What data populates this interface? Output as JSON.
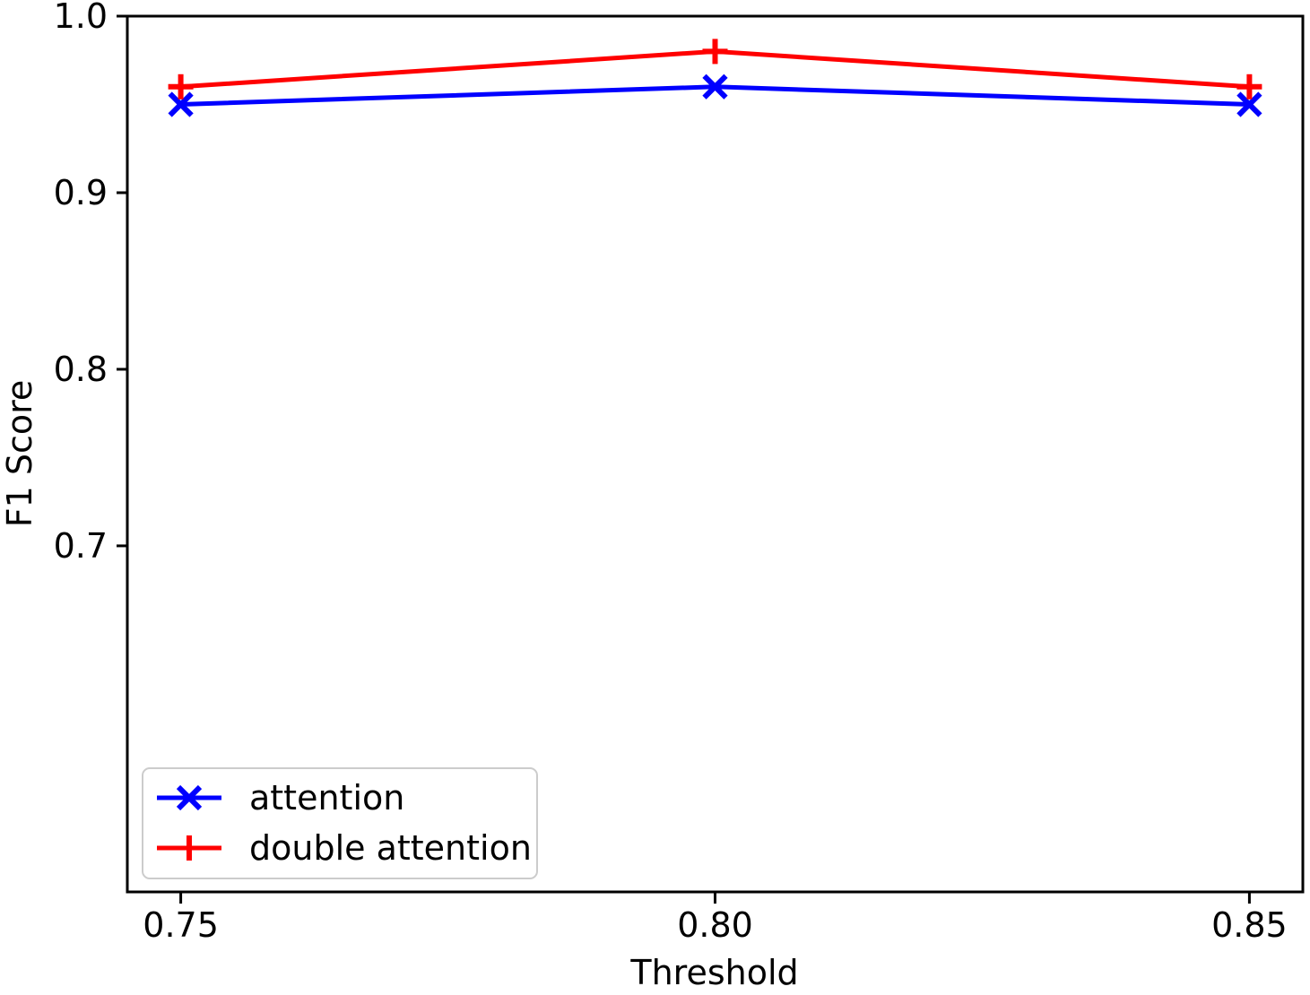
{
  "chart_data": {
    "type": "line",
    "title": "",
    "xlabel": "Threshold",
    "ylabel": "F1 Score",
    "x": [
      0.75,
      0.8,
      0.85
    ],
    "series": [
      {
        "name": "attention",
        "color": "#0000ff",
        "marker": "x",
        "values": [
          0.95,
          0.96,
          0.95
        ]
      },
      {
        "name": "double attention",
        "color": "#ff0000",
        "marker": "plus",
        "values": [
          0.96,
          0.98,
          0.96
        ]
      }
    ],
    "xlim": [
      0.745,
      0.855
    ],
    "ylim": [
      0.504,
      1.0
    ],
    "xticks": [
      0.75,
      0.8,
      0.85
    ],
    "xtick_labels": [
      "0.75",
      "0.80",
      "0.85"
    ],
    "yticks": [
      1.0,
      0.9,
      0.8,
      0.7
    ],
    "ytick_labels": [
      "1.0",
      "0.9",
      "0.8",
      "0.7"
    ],
    "legend": {
      "position": "lower left",
      "entries": [
        "attention",
        "double attention"
      ]
    },
    "grid": false,
    "axis_color": "#000000",
    "background": "#ffffff"
  }
}
